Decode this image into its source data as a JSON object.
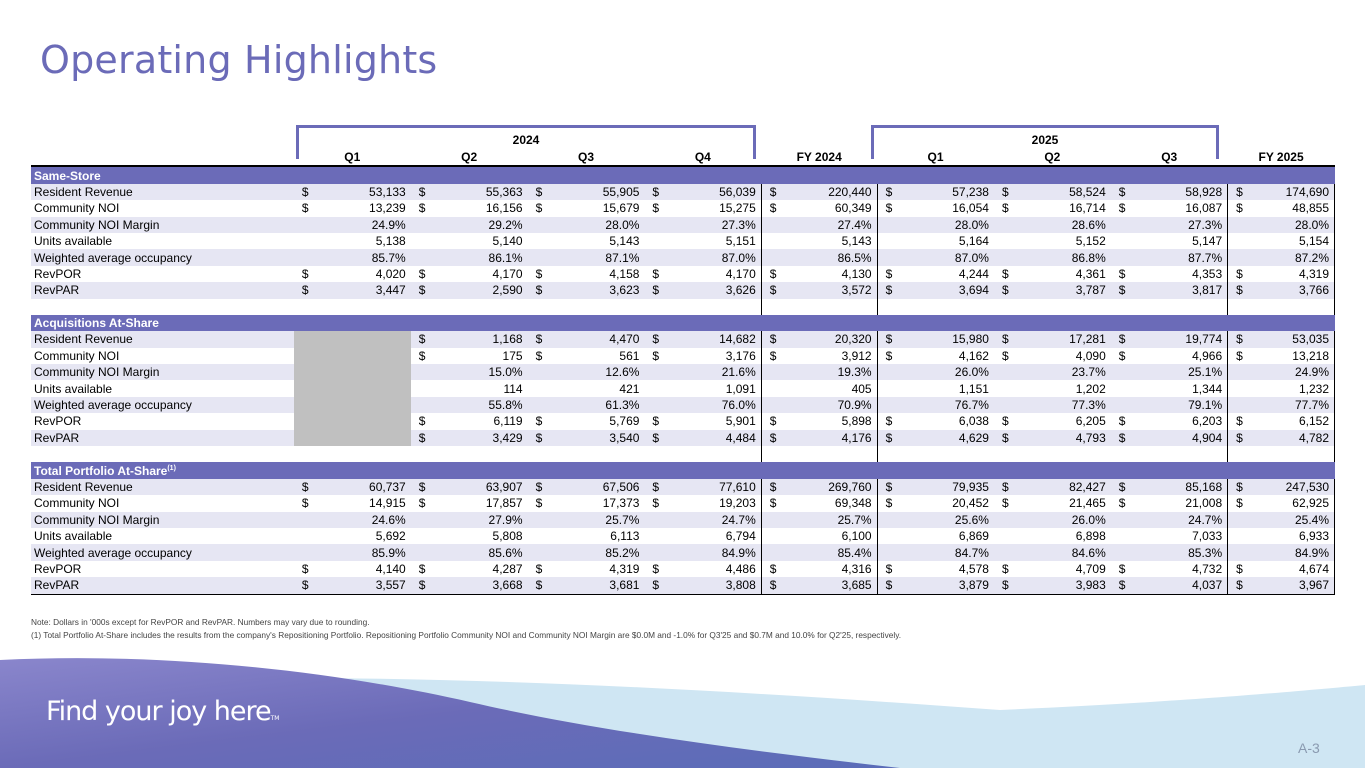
{
  "page": {
    "title": "Operating Highlights",
    "page_number": "A-3",
    "tagline": "Find your joy here",
    "tagline_tm": "TM"
  },
  "colors": {
    "accent": "#6b6bb8",
    "alt_row": "#e6e6f3",
    "gray_cell": "#c0c0c0",
    "wave_light": "#cfe6f3"
  },
  "years": [
    "2024",
    "2025"
  ],
  "columns": [
    "Q1",
    "Q2",
    "Q3",
    "Q4",
    "FY 2024",
    "Q1",
    "Q2",
    "Q3",
    "FY 2025"
  ],
  "sections": [
    {
      "title": "Same-Store",
      "footnote_mark": "",
      "rows": [
        {
          "label": "Resident Revenue",
          "cells": [
            [
              "$",
              "53,133"
            ],
            [
              "$",
              "55,363"
            ],
            [
              "$",
              "55,905"
            ],
            [
              "$",
              "56,039"
            ],
            [
              "$",
              "220,440"
            ],
            [
              "$",
              "57,238"
            ],
            [
              "$",
              "58,524"
            ],
            [
              "$",
              "58,928"
            ],
            [
              "$",
              "174,690"
            ]
          ]
        },
        {
          "label": "Community NOI",
          "cells": [
            [
              "$",
              "13,239"
            ],
            [
              "$",
              "16,156"
            ],
            [
              "$",
              "15,679"
            ],
            [
              "$",
              "15,275"
            ],
            [
              "$",
              "60,349"
            ],
            [
              "$",
              "16,054"
            ],
            [
              "$",
              "16,714"
            ],
            [
              "$",
              "16,087"
            ],
            [
              "$",
              "48,855"
            ]
          ]
        },
        {
          "label": "Community NOI Margin",
          "cells": [
            [
              "",
              "24.9%"
            ],
            [
              "",
              "29.2%"
            ],
            [
              "",
              "28.0%"
            ],
            [
              "",
              "27.3%"
            ],
            [
              "",
              "27.4%"
            ],
            [
              "",
              "28.0%"
            ],
            [
              "",
              "28.6%"
            ],
            [
              "",
              "27.3%"
            ],
            [
              "",
              "28.0%"
            ]
          ]
        },
        {
          "label": "Units available",
          "cells": [
            [
              "",
              "5,138"
            ],
            [
              "",
              "5,140"
            ],
            [
              "",
              "5,143"
            ],
            [
              "",
              "5,151"
            ],
            [
              "",
              "5,143"
            ],
            [
              "",
              "5,164"
            ],
            [
              "",
              "5,152"
            ],
            [
              "",
              "5,147"
            ],
            [
              "",
              "5,154"
            ]
          ]
        },
        {
          "label": "Weighted average occupancy",
          "cells": [
            [
              "",
              "85.7%"
            ],
            [
              "",
              "86.1%"
            ],
            [
              "",
              "87.1%"
            ],
            [
              "",
              "87.0%"
            ],
            [
              "",
              "86.5%"
            ],
            [
              "",
              "87.0%"
            ],
            [
              "",
              "86.8%"
            ],
            [
              "",
              "87.7%"
            ],
            [
              "",
              "87.2%"
            ]
          ]
        },
        {
          "label": "RevPOR",
          "cells": [
            [
              "$",
              "4,020"
            ],
            [
              "$",
              "4,170"
            ],
            [
              "$",
              "4,158"
            ],
            [
              "$",
              "4,170"
            ],
            [
              "$",
              "4,130"
            ],
            [
              "$",
              "4,244"
            ],
            [
              "$",
              "4,361"
            ],
            [
              "$",
              "4,353"
            ],
            [
              "$",
              "4,319"
            ]
          ]
        },
        {
          "label": "RevPAR",
          "cells": [
            [
              "$",
              "3,447"
            ],
            [
              "$",
              "2,590"
            ],
            [
              "$",
              "3,623"
            ],
            [
              "$",
              "3,626"
            ],
            [
              "$",
              "3,572"
            ],
            [
              "$",
              "3,694"
            ],
            [
              "$",
              "3,787"
            ],
            [
              "$",
              "3,817"
            ],
            [
              "$",
              "3,766"
            ]
          ]
        }
      ]
    },
    {
      "title": "Acquisitions At-Share",
      "footnote_mark": "",
      "gray_first": true,
      "rows": [
        {
          "label": "Resident Revenue",
          "cells": [
            null,
            [
              "$",
              "1,168"
            ],
            [
              "$",
              "4,470"
            ],
            [
              "$",
              "14,682"
            ],
            [
              "$",
              "20,320"
            ],
            [
              "$",
              "15,980"
            ],
            [
              "$",
              "17,281"
            ],
            [
              "$",
              "19,774"
            ],
            [
              "$",
              "53,035"
            ]
          ]
        },
        {
          "label": "Community NOI",
          "cells": [
            null,
            [
              "$",
              "175"
            ],
            [
              "$",
              "561"
            ],
            [
              "$",
              "3,176"
            ],
            [
              "$",
              "3,912"
            ],
            [
              "$",
              "4,162"
            ],
            [
              "$",
              "4,090"
            ],
            [
              "$",
              "4,966"
            ],
            [
              "$",
              "13,218"
            ]
          ]
        },
        {
          "label": "Community NOI Margin",
          "cells": [
            null,
            [
              "",
              "15.0%"
            ],
            [
              "",
              "12.6%"
            ],
            [
              "",
              "21.6%"
            ],
            [
              "",
              "19.3%"
            ],
            [
              "",
              "26.0%"
            ],
            [
              "",
              "23.7%"
            ],
            [
              "",
              "25.1%"
            ],
            [
              "",
              "24.9%"
            ]
          ]
        },
        {
          "label": "Units available",
          "cells": [
            null,
            [
              "",
              "114"
            ],
            [
              "",
              "421"
            ],
            [
              "",
              "1,091"
            ],
            [
              "",
              "405"
            ],
            [
              "",
              "1,151"
            ],
            [
              "",
              "1,202"
            ],
            [
              "",
              "1,344"
            ],
            [
              "",
              "1,232"
            ]
          ]
        },
        {
          "label": "Weighted average occupancy",
          "cells": [
            null,
            [
              "",
              "55.8%"
            ],
            [
              "",
              "61.3%"
            ],
            [
              "",
              "76.0%"
            ],
            [
              "",
              "70.9%"
            ],
            [
              "",
              "76.7%"
            ],
            [
              "",
              "77.3%"
            ],
            [
              "",
              "79.1%"
            ],
            [
              "",
              "77.7%"
            ]
          ]
        },
        {
          "label": "RevPOR",
          "cells": [
            null,
            [
              "$",
              "6,119"
            ],
            [
              "$",
              "5,769"
            ],
            [
              "$",
              "5,901"
            ],
            [
              "$",
              "5,898"
            ],
            [
              "$",
              "6,038"
            ],
            [
              "$",
              "6,205"
            ],
            [
              "$",
              "6,203"
            ],
            [
              "$",
              "6,152"
            ]
          ]
        },
        {
          "label": "RevPAR",
          "cells": [
            null,
            [
              "$",
              "3,429"
            ],
            [
              "$",
              "3,540"
            ],
            [
              "$",
              "4,484"
            ],
            [
              "$",
              "4,176"
            ],
            [
              "$",
              "4,629"
            ],
            [
              "$",
              "4,793"
            ],
            [
              "$",
              "4,904"
            ],
            [
              "$",
              "4,782"
            ]
          ]
        }
      ]
    },
    {
      "title": "Total Portfolio At-Share",
      "footnote_mark": "(1)",
      "rows": [
        {
          "label": "Resident Revenue",
          "cells": [
            [
              "$",
              "60,737"
            ],
            [
              "$",
              "63,907"
            ],
            [
              "$",
              "67,506"
            ],
            [
              "$",
              "77,610"
            ],
            [
              "$",
              "269,760"
            ],
            [
              "$",
              "79,935"
            ],
            [
              "$",
              "82,427"
            ],
            [
              "$",
              "85,168"
            ],
            [
              "$",
              "247,530"
            ]
          ]
        },
        {
          "label": "Community NOI",
          "cells": [
            [
              "$",
              "14,915"
            ],
            [
              "$",
              "17,857"
            ],
            [
              "$",
              "17,373"
            ],
            [
              "$",
              "19,203"
            ],
            [
              "$",
              "69,348"
            ],
            [
              "$",
              "20,452"
            ],
            [
              "$",
              "21,465"
            ],
            [
              "$",
              "21,008"
            ],
            [
              "$",
              "62,925"
            ]
          ]
        },
        {
          "label": "Community NOI Margin",
          "cells": [
            [
              "",
              "24.6%"
            ],
            [
              "",
              "27.9%"
            ],
            [
              "",
              "25.7%"
            ],
            [
              "",
              "24.7%"
            ],
            [
              "",
              "25.7%"
            ],
            [
              "",
              "25.6%"
            ],
            [
              "",
              "26.0%"
            ],
            [
              "",
              "24.7%"
            ],
            [
              "",
              "25.4%"
            ]
          ]
        },
        {
          "label": "Units available",
          "cells": [
            [
              "",
              "5,692"
            ],
            [
              "",
              "5,808"
            ],
            [
              "",
              "6,113"
            ],
            [
              "",
              "6,794"
            ],
            [
              "",
              "6,100"
            ],
            [
              "",
              "6,869"
            ],
            [
              "",
              "6,898"
            ],
            [
              "",
              "7,033"
            ],
            [
              "",
              "6,933"
            ]
          ]
        },
        {
          "label": "Weighted average occupancy",
          "cells": [
            [
              "",
              "85.9%"
            ],
            [
              "",
              "85.6%"
            ],
            [
              "",
              "85.2%"
            ],
            [
              "",
              "84.9%"
            ],
            [
              "",
              "85.4%"
            ],
            [
              "",
              "84.7%"
            ],
            [
              "",
              "84.6%"
            ],
            [
              "",
              "85.3%"
            ],
            [
              "",
              "84.9%"
            ]
          ]
        },
        {
          "label": "RevPOR",
          "cells": [
            [
              "$",
              "4,140"
            ],
            [
              "$",
              "4,287"
            ],
            [
              "$",
              "4,319"
            ],
            [
              "$",
              "4,486"
            ],
            [
              "$",
              "4,316"
            ],
            [
              "$",
              "4,578"
            ],
            [
              "$",
              "4,709"
            ],
            [
              "$",
              "4,732"
            ],
            [
              "$",
              "4,674"
            ]
          ]
        },
        {
          "label": "RevPAR",
          "cells": [
            [
              "$",
              "3,557"
            ],
            [
              "$",
              "3,668"
            ],
            [
              "$",
              "3,681"
            ],
            [
              "$",
              "3,808"
            ],
            [
              "$",
              "3,685"
            ],
            [
              "$",
              "3,879"
            ],
            [
              "$",
              "3,983"
            ],
            [
              "$",
              "4,037"
            ],
            [
              "$",
              "3,967"
            ]
          ]
        }
      ]
    }
  ],
  "notes": [
    "Note: Dollars in '000s except for RevPOR and RevPAR.  Numbers may vary due to rounding.",
    "(1) Total Portfolio At-Share includes the results from the company's Repositioning Portfolio.  Repositioning Portfolio Community NOI and Community NOI Margin are $0.0M and -1.0% for Q3'25 and $0.7M and 10.0% for Q2'25, respectively."
  ]
}
